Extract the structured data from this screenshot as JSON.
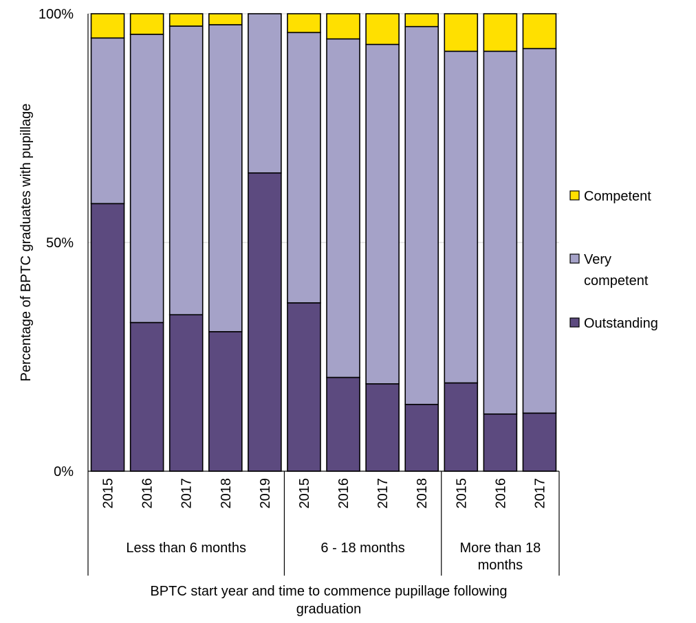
{
  "chart_data": {
    "type": "bar",
    "stacked": true,
    "percent_stacked": true,
    "ylabel": "Percentage of BPTC graduates with pupillage",
    "xlabel_lines": [
      "BPTC start year and time to commence pupillage  following",
      "graduation"
    ],
    "y_ticks": [
      "0%",
      "50%",
      "100%"
    ],
    "ylim": [
      0,
      100
    ],
    "grid": "horizontal",
    "legend_position": "right",
    "categories": [
      "2015",
      "2016",
      "2017",
      "2018",
      "2019",
      "2015",
      "2016",
      "2017",
      "2018",
      "2015",
      "2016",
      "2017"
    ],
    "groups": [
      {
        "label_lines": [
          "Less than 6 months"
        ],
        "count": 5
      },
      {
        "label_lines": [
          "6 - 18 months"
        ],
        "count": 4
      },
      {
        "label_lines": [
          "More than 18",
          "months"
        ],
        "count": 3
      }
    ],
    "series": [
      {
        "name": "Outstanding",
        "color": "#5c4a7f",
        "values": [
          58.5,
          32.5,
          34.2,
          30.5,
          65.2,
          36.8,
          20.5,
          19.1,
          14.6,
          19.3,
          12.5,
          12.7
        ]
      },
      {
        "name": "Very competent",
        "color": "#a5a2c8",
        "values": [
          36.2,
          63.0,
          63.1,
          67.1,
          34.8,
          59.1,
          74.0,
          74.2,
          82.6,
          72.5,
          79.3,
          79.7
        ]
      },
      {
        "name": "Competent",
        "color": "#ffe000",
        "values": [
          5.3,
          4.5,
          2.7,
          2.4,
          0.0,
          4.1,
          5.5,
          6.7,
          2.8,
          8.2,
          8.2,
          7.6
        ]
      }
    ],
    "legend": [
      {
        "lines": [
          "Competent"
        ],
        "color": "#ffe000"
      },
      {
        "lines": [
          "Very",
          "competent"
        ],
        "color": "#a5a2c8"
      },
      {
        "lines": [
          "Outstanding"
        ],
        "color": "#5c4a7f"
      }
    ]
  }
}
